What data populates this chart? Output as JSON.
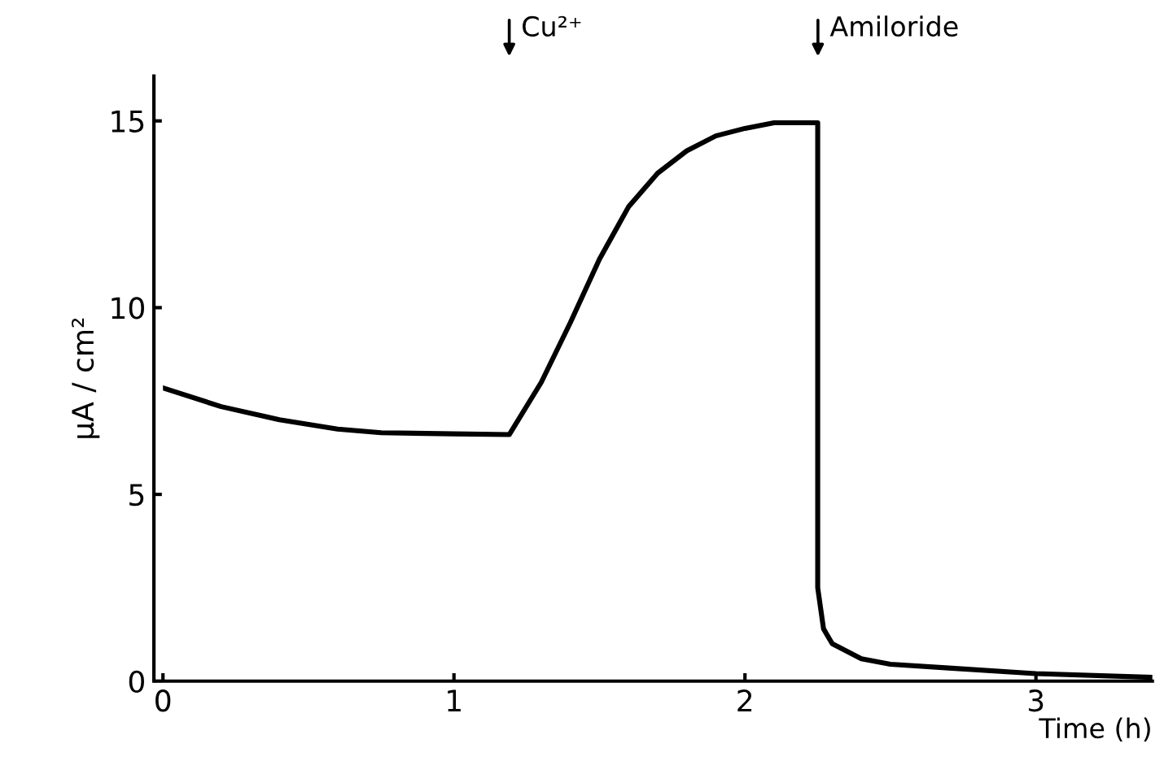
{
  "chart_data": {
    "type": "line",
    "xlabel": "Time (h)",
    "ylabel": "μA / cm²",
    "x": [
      0,
      0.2,
      0.4,
      0.6,
      0.75,
      1.0,
      1.19,
      1.3,
      1.4,
      1.5,
      1.6,
      1.7,
      1.8,
      1.9,
      2.0,
      2.1,
      2.25,
      2.25,
      2.27,
      2.3,
      2.4,
      2.5,
      2.7,
      3.0,
      3.4
    ],
    "series": [
      {
        "color": "#000000",
        "values": [
          7.85,
          7.35,
          7.0,
          6.75,
          6.65,
          6.62,
          6.6,
          8.0,
          9.6,
          11.3,
          12.7,
          13.6,
          14.2,
          14.6,
          14.8,
          14.95,
          14.95,
          2.5,
          1.4,
          1.0,
          0.6,
          0.45,
          0.35,
          0.2,
          0.1
        ]
      }
    ],
    "xlim": [
      0,
      3.4
    ],
    "xticks": [
      0,
      1,
      2,
      3
    ],
    "ylim": [
      0,
      16.2
    ],
    "yticks": [
      0,
      5,
      10,
      15
    ],
    "annotations": [
      "Cu²⁺",
      "Amiloride"
    ],
    "grid": false,
    "legend": false,
    "marker": "none",
    "line_style": "solid"
  }
}
